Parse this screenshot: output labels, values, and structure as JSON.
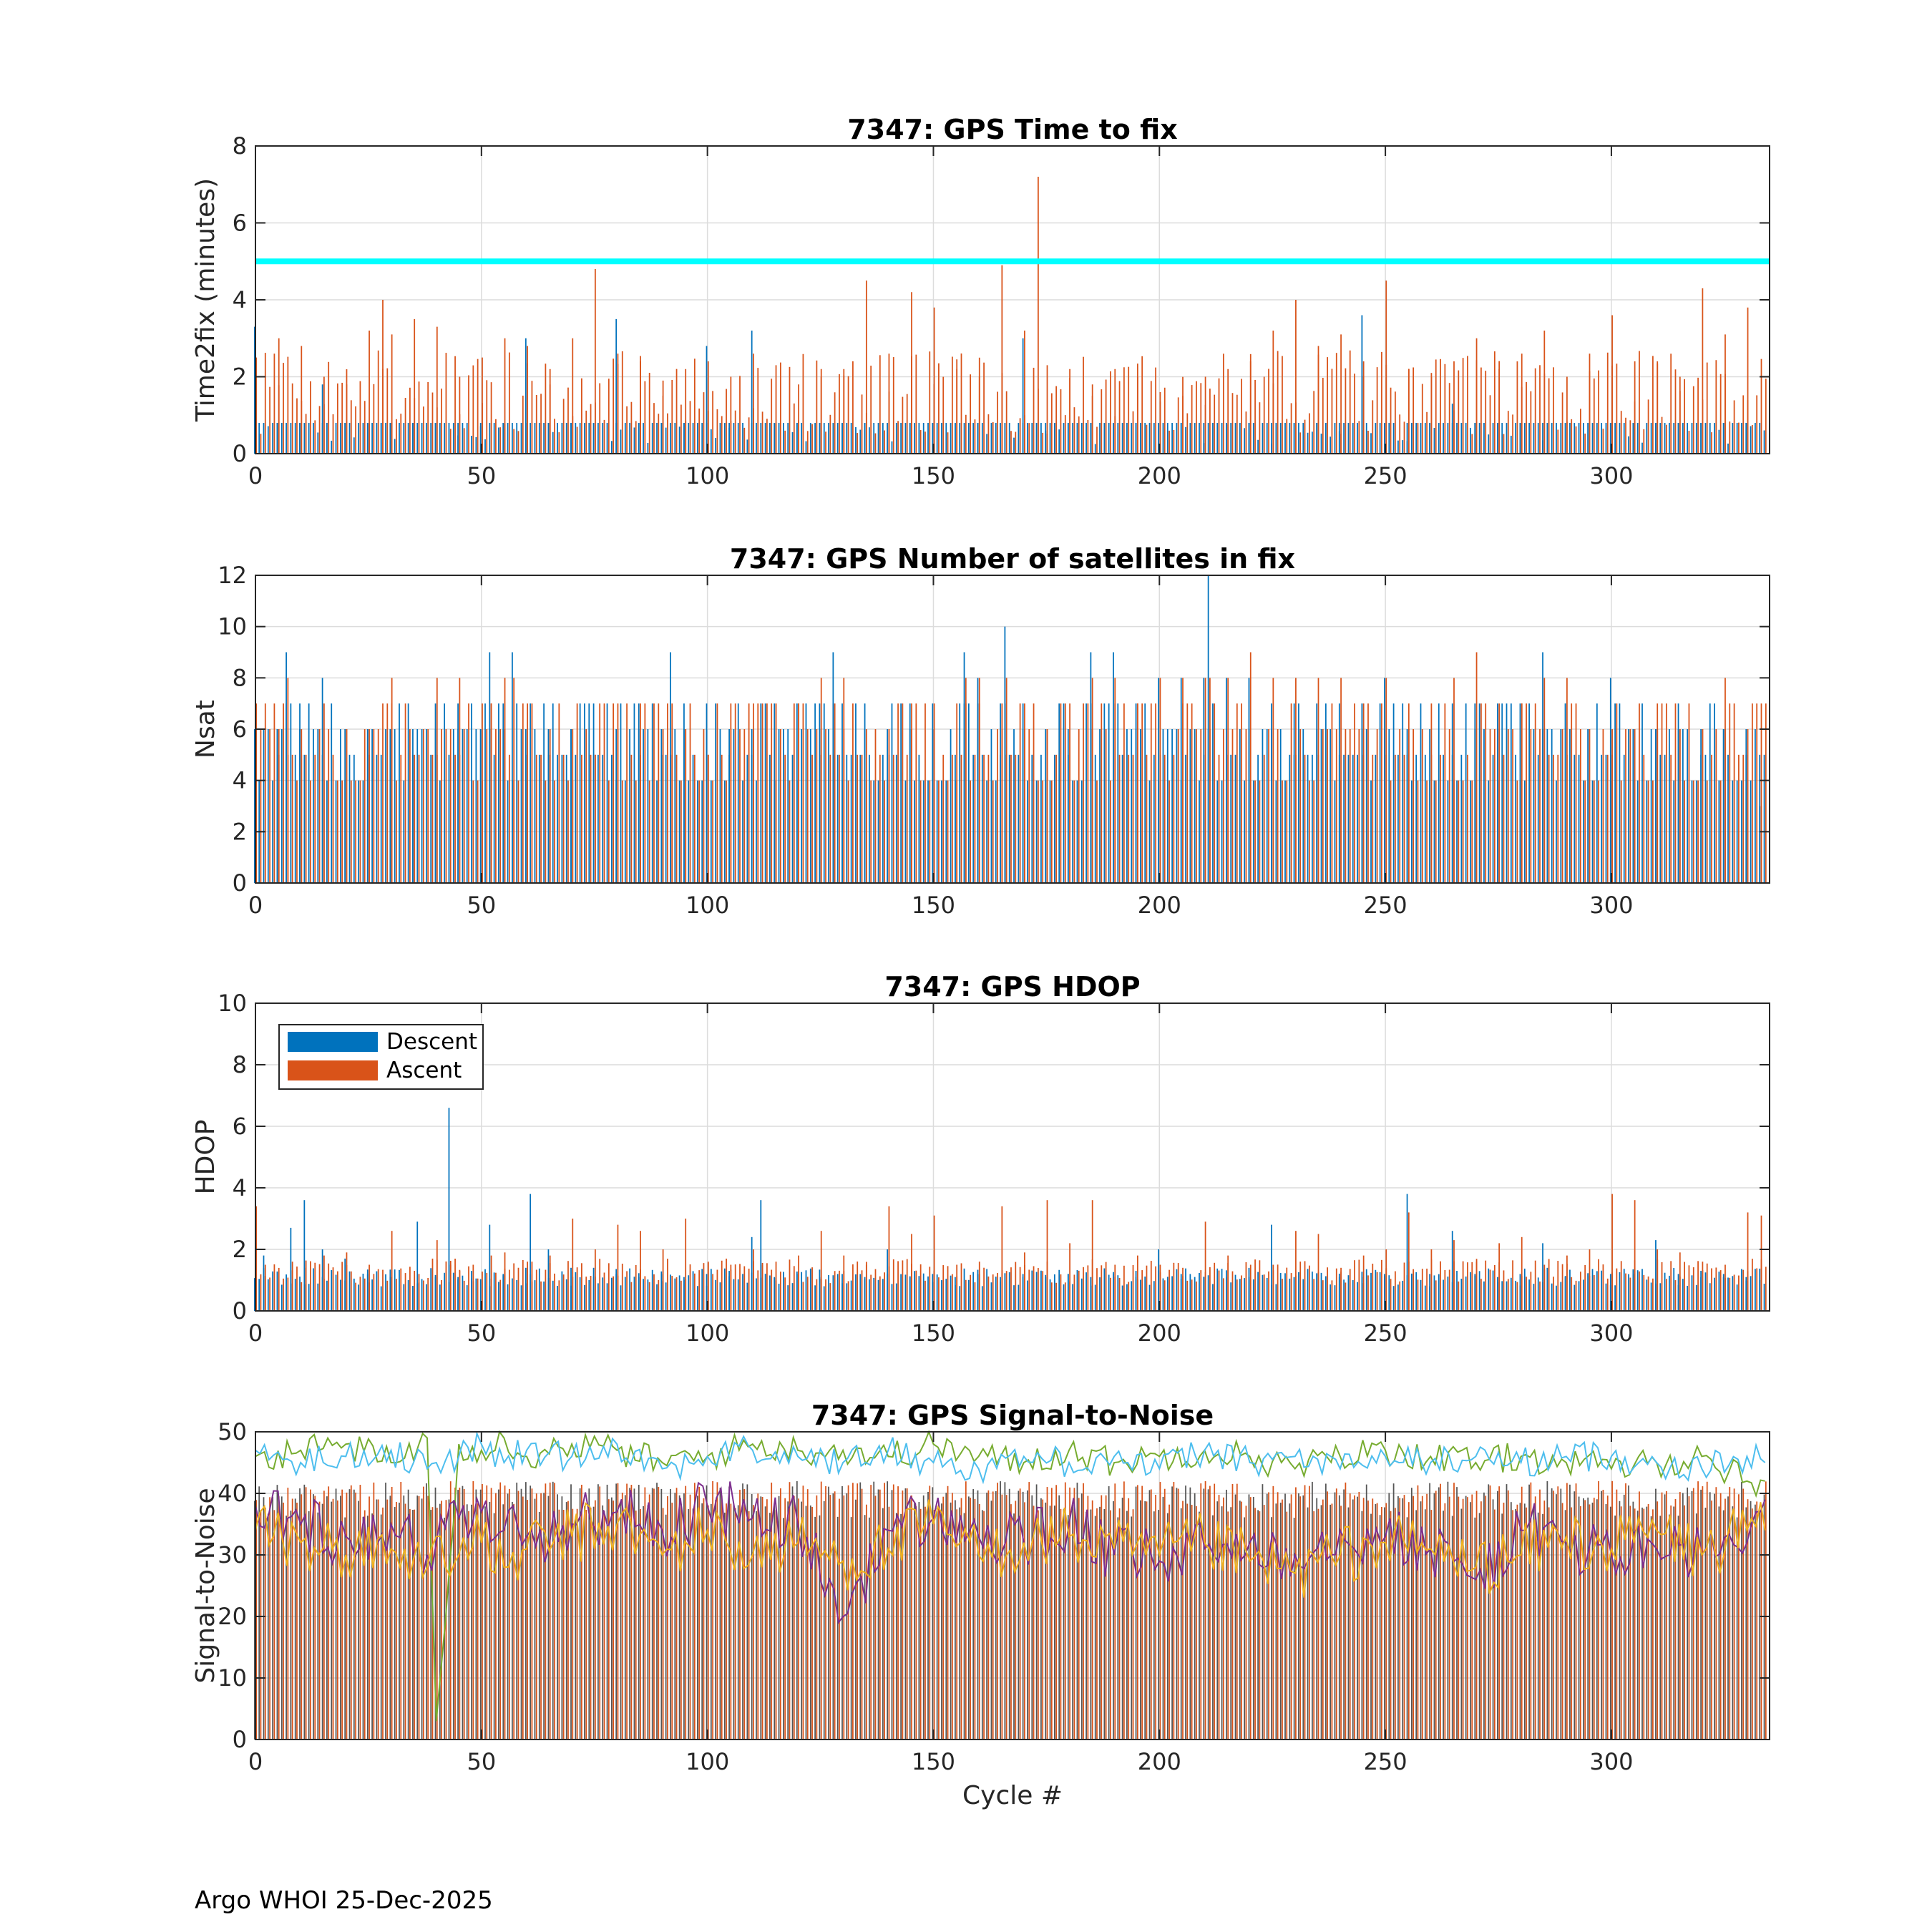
{
  "colors": {
    "descent": "#0072BD",
    "ascent": "#D95319",
    "threshold": "#00FFFF",
    "snr_lines": [
      "#77AC30",
      "#4DBEEE",
      "#7E2F8E",
      "#EDB120"
    ],
    "grid": "#DCDCDC",
    "axis": "#262626"
  },
  "footer": "Argo WHOI 25-Dec-2025",
  "chart_data": [
    {
      "id": "time2fix",
      "type": "bar",
      "title": "7347: GPS Time to fix",
      "xlabel": "",
      "ylabel": "Time2fix (minutes)",
      "xlim": [
        0,
        335
      ],
      "ylim": [
        0,
        8
      ],
      "xticks": [
        0,
        50,
        100,
        150,
        200,
        250,
        300
      ],
      "yticks": [
        0,
        2,
        4,
        6,
        8
      ],
      "grid": true,
      "threshold": 5,
      "x": [
        0,
        5,
        10,
        15,
        20,
        25,
        28,
        30,
        35,
        40,
        45,
        50,
        55,
        60,
        65,
        70,
        75,
        80,
        85,
        90,
        95,
        100,
        105,
        110,
        115,
        120,
        125,
        130,
        135,
        140,
        145,
        150,
        155,
        160,
        165,
        170,
        173,
        175,
        180,
        185,
        190,
        195,
        200,
        205,
        210,
        215,
        220,
        225,
        230,
        235,
        240,
        245,
        250,
        255,
        260,
        265,
        270,
        275,
        280,
        285,
        290,
        295,
        300,
        305,
        310,
        315,
        320,
        325,
        330
      ],
      "series": [
        {
          "name": "Descent",
          "values": [
            3.3,
            0.8,
            0.8,
            1.8,
            0.8,
            0.8,
            0.8,
            0.8,
            0.8,
            0.8,
            0.8,
            0.8,
            0.8,
            3.0,
            0.8,
            0.8,
            0.8,
            3.5,
            0.8,
            0.8,
            0.8,
            2.8,
            0.8,
            3.2,
            0.8,
            0.8,
            0.8,
            0.8,
            0.8,
            0.8,
            0.8,
            0.8,
            0.8,
            0.8,
            0.8,
            3.0,
            0.8,
            0.8,
            0.8,
            0.8,
            0.8,
            0.8,
            0.8,
            0.8,
            0.8,
            0.8,
            0.8,
            0.8,
            0.8,
            0.8,
            0.8,
            3.6,
            0.8,
            0.8,
            0.8,
            1.3,
            0.8,
            0.8,
            0.8,
            0.8,
            0.8,
            0.8,
            0.8,
            0.8,
            0.8,
            0.8,
            0.8,
            0.8,
            0.8
          ]
        },
        {
          "name": "Ascent",
          "values": [
            2.5,
            3.0,
            2.8,
            2.0,
            1.8,
            3.2,
            4.0,
            3.1,
            3.5,
            3.3,
            2.0,
            2.5,
            3.0,
            2.8,
            2.2,
            3.0,
            4.8,
            2.6,
            2.4,
            1.9,
            2.2,
            2.4,
            2.0,
            2.6,
            2.3,
            1.8,
            2.0,
            2.2,
            4.5,
            2.6,
            4.2,
            3.8,
            2.2,
            2.0,
            4.9,
            3.2,
            7.2,
            2.3,
            2.2,
            1.8,
            2.2,
            2.0,
            1.6,
            1.5,
            2.0,
            2.2,
            2.4,
            3.2,
            4.0,
            2.8,
            3.1,
            2.4,
            4.5,
            2.2,
            2.0,
            2.4,
            3.0,
            2.2,
            2.6,
            3.2,
            2.0,
            2.6,
            3.6,
            2.4,
            2.4,
            2.0,
            4.3,
            3.1,
            3.8
          ]
        }
      ]
    },
    {
      "id": "nsat",
      "type": "bar",
      "title": "7347: GPS Number of satellites in fix",
      "xlabel": "",
      "ylabel": "Nsat",
      "xlim": [
        0,
        335
      ],
      "ylim": [
        0,
        12
      ],
      "xticks": [
        0,
        50,
        100,
        150,
        200,
        250,
        300
      ],
      "yticks": [
        0,
        2,
        4,
        6,
        8,
        10,
        12
      ],
      "grid": true,
      "x": [
        0,
        5,
        7,
        10,
        15,
        20,
        25,
        30,
        35,
        40,
        45,
        50,
        52,
        55,
        57,
        60,
        65,
        70,
        75,
        80,
        85,
        90,
        92,
        95,
        100,
        105,
        110,
        115,
        120,
        125,
        128,
        130,
        135,
        140,
        145,
        150,
        155,
        157,
        160,
        165,
        166,
        170,
        175,
        180,
        185,
        190,
        195,
        200,
        205,
        210,
        211,
        215,
        220,
        225,
        230,
        235,
        240,
        245,
        250,
        255,
        260,
        265,
        270,
        275,
        280,
        285,
        290,
        295,
        300,
        305,
        310,
        315,
        320,
        325,
        330,
        333
      ],
      "series": [
        {
          "name": "Descent",
          "values": [
            6,
            6,
            9,
            6,
            8,
            6,
            6,
            6,
            5,
            6,
            6,
            6,
            9,
            6,
            9,
            6,
            6,
            6,
            5,
            6,
            6,
            6,
            9,
            6,
            6,
            6,
            6,
            7,
            7,
            7,
            9,
            7,
            6,
            6,
            6,
            6,
            4,
            9,
            8,
            7,
            10,
            7,
            6,
            6,
            9,
            9,
            6,
            8,
            8,
            8,
            12,
            8,
            8,
            6,
            7,
            6,
            7,
            6,
            8,
            6,
            6,
            7,
            7,
            7,
            7,
            9,
            7,
            6,
            8,
            6,
            6,
            6,
            5,
            6,
            6,
            3
          ]
        },
        {
          "name": "Ascent",
          "values": [
            5,
            6,
            8,
            6,
            7,
            6,
            6,
            8,
            5,
            8,
            8,
            7,
            7,
            8,
            8,
            7,
            6,
            6,
            5,
            6,
            7,
            6,
            7,
            6,
            5,
            6,
            7,
            7,
            7,
            8,
            7,
            8,
            6,
            6,
            6,
            6,
            4,
            8,
            8,
            7,
            8,
            7,
            6,
            6,
            8,
            8,
            7,
            8,
            8,
            8,
            8,
            8,
            9,
            8,
            8,
            8,
            8,
            7,
            8,
            7,
            7,
            8,
            9,
            7,
            7,
            8,
            8,
            6,
            6,
            6,
            7,
            6,
            6,
            8,
            6,
            3
          ]
        }
      ]
    },
    {
      "id": "hdop",
      "type": "bar",
      "title": "7347: GPS HDOP",
      "xlabel": "",
      "ylabel": "HDOP",
      "xlim": [
        0,
        335
      ],
      "ylim": [
        0,
        10
      ],
      "xticks": [
        0,
        50,
        100,
        150,
        200,
        250,
        300
      ],
      "yticks": [
        0,
        2,
        4,
        6,
        8,
        10
      ],
      "grid": true,
      "legend": {
        "placement": "top-left",
        "entries": [
          "Descent",
          "Ascent"
        ]
      },
      "x": [
        0,
        2,
        8,
        11,
        15,
        20,
        25,
        30,
        36,
        40,
        43,
        45,
        48,
        52,
        55,
        60,
        61,
        65,
        70,
        75,
        80,
        85,
        90,
        95,
        100,
        105,
        110,
        112,
        115,
        120,
        125,
        130,
        135,
        140,
        145,
        150,
        155,
        160,
        165,
        170,
        175,
        180,
        185,
        190,
        195,
        200,
        205,
        210,
        215,
        220,
        225,
        230,
        235,
        240,
        245,
        250,
        255,
        260,
        265,
        270,
        275,
        280,
        285,
        290,
        295,
        300,
        305,
        310,
        315,
        320,
        325,
        330,
        333
      ],
      "series": [
        {
          "name": "Descent",
          "values": [
            1.0,
            1.8,
            2.7,
            3.6,
            2.0,
            1.7,
            1.2,
            1.1,
            2.9,
            1.1,
            6.6,
            1.1,
            1.3,
            2.8,
            1.2,
            1.4,
            3.8,
            2.0,
            1.4,
            1.4,
            1.2,
            1.1,
            1.2,
            1.1,
            1.2,
            1.3,
            2.4,
            3.6,
            1.1,
            1.2,
            1.1,
            1.2,
            1.1,
            2.0,
            1.1,
            1.2,
            1.1,
            1.2,
            1.1,
            1.2,
            1.1,
            1.2,
            1.1,
            1.2,
            1.1,
            2.0,
            1.2,
            1.1,
            1.1,
            1.1,
            2.8,
            1.1,
            1.2,
            1.1,
            1.1,
            1.2,
            3.8,
            1.2,
            2.6,
            1.2,
            1.1,
            1.2,
            2.2,
            1.1,
            1.2,
            1.2,
            1.2,
            2.3,
            1.2,
            1.1,
            1.2,
            1.1,
            1.0
          ]
        },
        {
          "name": "Ascent",
          "values": [
            3.4,
            1.5,
            1.6,
            1.4,
            1.8,
            1.9,
            1.5,
            2.6,
            1.2,
            2.3,
            1.5,
            1.3,
            1.5,
            1.8,
            1.9,
            1.6,
            1.6,
            1.8,
            3.0,
            2.0,
            2.8,
            2.6,
            2.0,
            3.0,
            1.6,
            1.5,
            2.0,
            1.5,
            1.6,
            1.8,
            2.6,
            1.8,
            1.5,
            3.4,
            2.5,
            3.1,
            1.5,
            1.6,
            3.4,
            1.9,
            3.6,
            2.2,
            3.6,
            1.5,
            1.8,
            1.5,
            1.4,
            2.9,
            1.8,
            1.5,
            1.5,
            2.6,
            2.5,
            1.4,
            1.8,
            2.0,
            3.2,
            2.0,
            2.3,
            1.6,
            2.2,
            2.4,
            1.5,
            1.8,
            2.0,
            3.8,
            3.6,
            2.0,
            1.9,
            1.6,
            1.5,
            3.2,
            3.1
          ]
        }
      ]
    },
    {
      "id": "snr",
      "type": "line",
      "title": "7347: GPS Signal-to-Noise",
      "xlabel": "Cycle #",
      "ylabel": "Signal-to-Noise",
      "xlim": [
        0,
        335
      ],
      "ylim": [
        0,
        50
      ],
      "xticks": [
        0,
        50,
        100,
        150,
        200,
        250,
        300
      ],
      "yticks": [
        0,
        10,
        20,
        30,
        40,
        50
      ],
      "grid": true,
      "bars_note": "dense descent/ascent bars underlying the lines",
      "x": [
        0,
        10,
        20,
        30,
        38,
        40,
        45,
        50,
        55,
        60,
        70,
        80,
        90,
        100,
        110,
        120,
        130,
        140,
        150,
        160,
        170,
        180,
        190,
        200,
        210,
        220,
        230,
        240,
        250,
        260,
        270,
        280,
        290,
        300,
        310,
        320,
        330,
        334
      ],
      "series": [
        {
          "name": "sat1",
          "values": [
            46,
            47,
            48,
            45,
            49,
            3,
            48,
            47,
            49,
            46,
            48,
            47,
            45,
            46,
            48,
            47,
            47,
            46,
            48,
            46,
            45,
            47,
            45,
            46,
            47,
            46,
            44,
            46,
            47,
            46,
            45,
            46,
            45,
            44,
            45,
            46,
            42,
            42
          ]
        },
        {
          "name": "sat2",
          "values": [
            47,
            45,
            46,
            47,
            44,
            45,
            46,
            48,
            45,
            47,
            46,
            48,
            44,
            46,
            47,
            46,
            45,
            47,
            45,
            44,
            46,
            45,
            46,
            44,
            47,
            45,
            46,
            44,
            46,
            45,
            46,
            45,
            46,
            46,
            45,
            44,
            46,
            45
          ]
        },
        {
          "name": "sat3",
          "values": [
            38,
            35,
            33,
            35,
            30,
            32,
            36,
            37,
            34,
            33,
            35,
            37,
            34,
            38,
            36,
            35,
            20,
            34,
            36,
            33,
            32,
            35,
            30,
            29,
            31,
            32,
            30,
            34,
            33,
            31,
            26,
            34,
            32,
            30,
            31,
            30,
            32,
            39
          ]
        },
        {
          "name": "sat4",
          "values": [
            34,
            32,
            30,
            31,
            28,
            33,
            30,
            32,
            28,
            31,
            33,
            35,
            30,
            34,
            30,
            32,
            29,
            31,
            35,
            30,
            32,
            33,
            31,
            30,
            32,
            29,
            27,
            30,
            32,
            31,
            28,
            30,
            33,
            31,
            34,
            30,
            34,
            34
          ]
        }
      ]
    }
  ]
}
